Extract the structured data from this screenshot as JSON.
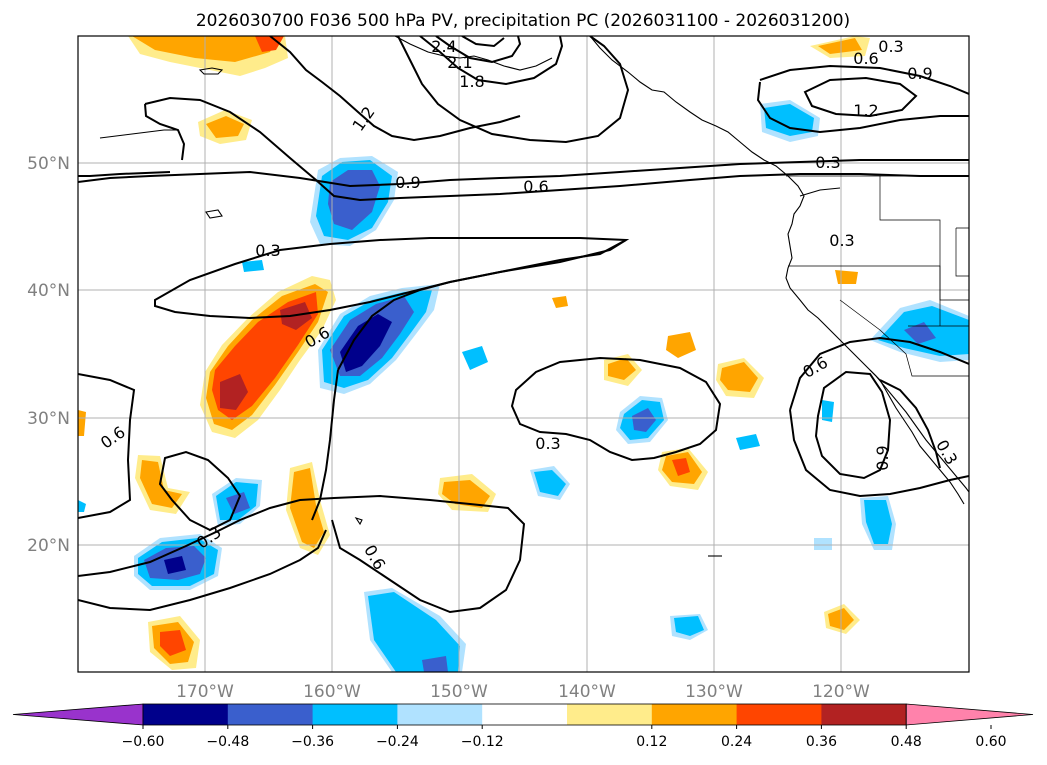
{
  "title": "2026030700 F036 500 hPa PV, precipitation PC (2026031100 - 2026031200)",
  "map": {
    "lat_labels": [
      "50°N",
      "40°N",
      "30°N",
      "20°N"
    ],
    "lon_labels": [
      "170°W",
      "160°W",
      "150°W",
      "140°W",
      "130°W",
      "120°W"
    ],
    "extent": {
      "lon": [
        -180,
        -110
      ],
      "lat": [
        10,
        60
      ]
    }
  },
  "pv_contour_labels": [
    "2.4",
    "2.1",
    "1.8",
    "1.2",
    "0.3",
    "0.6",
    "0.9",
    "1.2",
    "0.9",
    "0.6",
    "0.3",
    "0.3",
    "0.6",
    "0.3",
    "0.6",
    "0.6",
    "0.3",
    "0.3",
    "0.6",
    "0.9",
    "0.3"
  ],
  "colorbar": {
    "ticks": [
      "−0.60",
      "−0.48",
      "−0.36",
      "−0.24",
      "−0.12",
      "0.12",
      "0.24",
      "0.36",
      "0.48",
      "0.60"
    ],
    "colors": [
      "#9933cc",
      "#00008b",
      "#3a5fcd",
      "#00bfff",
      "#b0e2ff",
      "#ffffff",
      "#ffec8b",
      "#ffa500",
      "#ff4500",
      "#b22222",
      "#ff82ab"
    ]
  }
}
